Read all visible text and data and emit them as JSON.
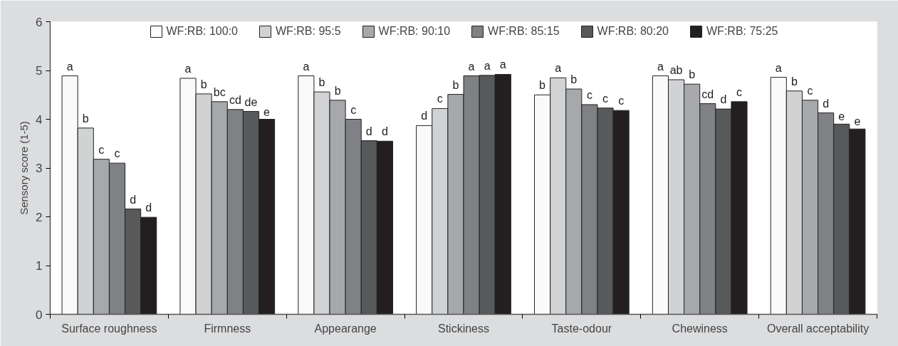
{
  "chart_data": {
    "type": "bar",
    "ylabel": "Sensory score (1-5)",
    "categories": [
      "Surface roughness",
      "Firmness",
      "Appearange",
      "Stickiness",
      "Taste-odour",
      "Chewiness",
      "Overall acceptability"
    ],
    "series": [
      {
        "name": "WF:RB: 100:0",
        "color": "#fafafa",
        "values": [
          4.89,
          4.84,
          4.89,
          3.87,
          4.5,
          4.89,
          4.86
        ]
      },
      {
        "name": "WF:RB: 95:5",
        "color": "#d1d2d4",
        "values": [
          3.82,
          4.52,
          4.56,
          4.22,
          4.85,
          4.81,
          4.58
        ]
      },
      {
        "name": "WF:RB: 90:10",
        "color": "#a7a8ab",
        "values": [
          3.18,
          4.36,
          4.39,
          4.51,
          4.62,
          4.72,
          4.39
        ]
      },
      {
        "name": "WF:RB: 85:15",
        "color": "#808184",
        "values": [
          3.1,
          4.2,
          4.0,
          4.89,
          4.3,
          4.32,
          4.13
        ]
      },
      {
        "name": "WF:RB: 80:20",
        "color": "#58595b",
        "values": [
          2.16,
          4.16,
          3.56,
          4.9,
          4.23,
          4.21,
          3.9
        ]
      },
      {
        "name": "WF:RB: 75:25",
        "color": "#231f20",
        "values": [
          1.99,
          4.0,
          3.55,
          4.92,
          4.18,
          4.36,
          3.8
        ]
      }
    ],
    "ylim": [
      0,
      6
    ],
    "yticks": [
      0,
      1,
      2,
      3,
      4,
      5,
      6
    ],
    "grid": false,
    "legend": "top",
    "annotations": [
      "a",
      "b",
      "c",
      "c",
      "d",
      "d",
      "a",
      "b",
      "bc",
      "cd",
      "de",
      "e",
      "a",
      "b",
      "b",
      "c",
      "d",
      "d",
      "d",
      "c",
      "b",
      "a",
      "a",
      "a",
      "b",
      "a",
      "b",
      "c",
      "c",
      "c",
      "a",
      "ab",
      "b",
      "cd",
      "d",
      "c",
      "a",
      "b",
      "c",
      "d",
      "e",
      "e"
    ]
  }
}
